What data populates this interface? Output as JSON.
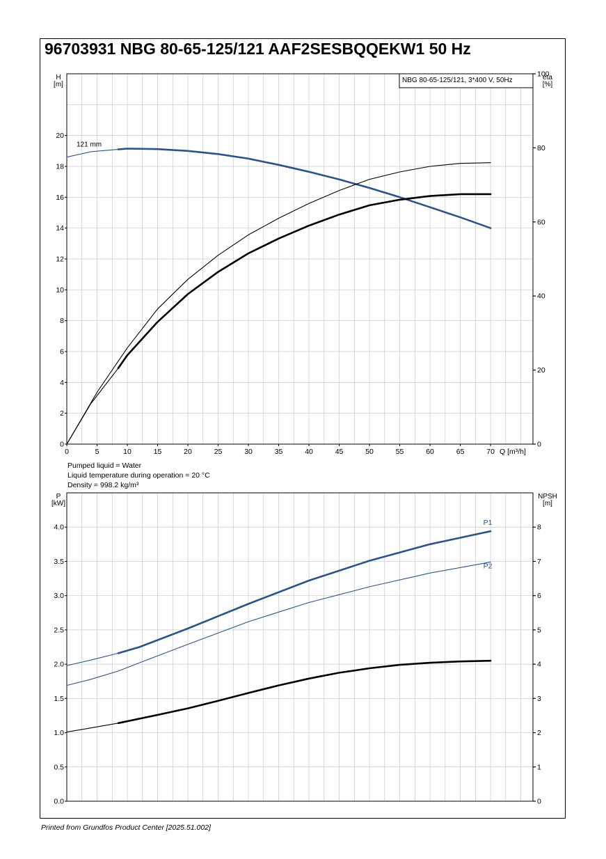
{
  "title": "96703931 NBG 80-65-125/121 AAF2SESBQQEKW1 50 Hz",
  "footer": "Printed from Grundfos Product Center [2025.51.002]",
  "notes": [
    "Pumped liquid = Water",
    "Liquid temperature during operation = 20 °C",
    "Density = 998.2 kg/m³"
  ],
  "colors": {
    "blue": "#2c5287",
    "black": "#000000",
    "grid": "#c8c8c8"
  },
  "chart_data": [
    {
      "type": "line",
      "legend_box": "NBG 80-65-125/121, 3*400 V, 50Hz",
      "left_axis": {
        "label_top": "H",
        "label_unit": "[m]",
        "ticks": [
          0,
          2,
          4,
          6,
          8,
          10,
          12,
          14,
          16,
          18,
          20
        ],
        "range": [
          0,
          24
        ]
      },
      "right_axis": {
        "label_top": "eta",
        "label_unit": "[%]",
        "ticks": [
          0,
          20,
          40,
          60,
          80,
          100
        ],
        "range": [
          0,
          100
        ]
      },
      "x_axis": {
        "label": "Q [m³/h]",
        "ticks": [
          0,
          5,
          10,
          15,
          20,
          25,
          30,
          35,
          40,
          45,
          50,
          55,
          60,
          65,
          70
        ],
        "range": [
          0,
          77
        ]
      },
      "grid": true,
      "series": [
        {
          "name": "121 mm",
          "axis": "left",
          "color": "blue",
          "segments": [
            {
              "style": "thin",
              "x": [
                0,
                4,
                8.5
              ],
              "y": [
                18.6,
                18.95,
                19.1
              ]
            },
            {
              "style": "thick",
              "x": [
                8.5,
                10,
                15,
                20,
                25,
                30,
                35,
                40,
                45,
                50,
                55,
                60,
                65,
                70
              ],
              "y": [
                19.1,
                19.15,
                19.12,
                19.0,
                18.8,
                18.5,
                18.1,
                17.65,
                17.15,
                16.6,
                16.0,
                15.35,
                14.7,
                14.0
              ]
            }
          ]
        },
        {
          "name": "",
          "axis": "right",
          "color": "black",
          "segments": [
            {
              "style": "thin",
              "x": [
                0,
                5,
                10,
                15,
                20,
                25,
                30,
                35,
                40,
                45,
                50,
                55,
                60,
                65,
                70
              ],
              "y": [
                0,
                14,
                26,
                36.5,
                44.5,
                51,
                56.5,
                61,
                65,
                68.5,
                71.5,
                73.5,
                75,
                75.8,
                76
              ]
            }
          ]
        },
        {
          "name": "",
          "axis": "right",
          "color": "black",
          "segments": [
            {
              "style": "thin",
              "x": [
                0,
                4,
                8.5
              ],
              "y": [
                0,
                11,
                20.5
              ]
            },
            {
              "style": "thick",
              "x": [
                8.5,
                10,
                15,
                20,
                25,
                30,
                35,
                40,
                45,
                50,
                55,
                60,
                65,
                70
              ],
              "y": [
                20.5,
                24,
                33,
                40.5,
                46.5,
                51.5,
                55.5,
                59,
                62,
                64.5,
                66,
                67,
                67.5,
                67.5
              ]
            }
          ]
        }
      ]
    },
    {
      "type": "line",
      "left_axis": {
        "label_top": "P",
        "label_unit": "[kW]",
        "ticks": [
          "0.0",
          "0.5",
          "1.0",
          "1.5",
          "2.0",
          "2.5",
          "3.0",
          "3.5",
          "4.0"
        ],
        "range": [
          0,
          4.5
        ]
      },
      "right_axis": {
        "label_top": "NPSH",
        "label_unit": "[m]",
        "ticks": [
          0,
          1,
          2,
          3,
          4,
          5,
          6,
          7,
          8
        ],
        "range": [
          0,
          9
        ]
      },
      "x_axis": {
        "range": [
          0,
          77
        ]
      },
      "grid": true,
      "series": [
        {
          "name": "P1",
          "axis": "left",
          "color": "blue",
          "segments": [
            {
              "style": "thin",
              "x": [
                0,
                4,
                8.5
              ],
              "y": [
                1.98,
                2.06,
                2.16
              ]
            },
            {
              "style": "thick",
              "x": [
                8.5,
                12,
                20,
                30,
                40,
                50,
                60,
                70
              ],
              "y": [
                2.16,
                2.25,
                2.52,
                2.88,
                3.22,
                3.51,
                3.75,
                3.94
              ]
            }
          ]
        },
        {
          "name": "P2",
          "axis": "left",
          "color": "blue",
          "segments": [
            {
              "style": "thin",
              "x": [
                0,
                4,
                8.5,
                12,
                20,
                30,
                40,
                50,
                60,
                70
              ],
              "y": [
                1.69,
                1.78,
                1.9,
                2.02,
                2.29,
                2.62,
                2.9,
                3.13,
                3.33,
                3.49
              ]
            }
          ]
        },
        {
          "name": "",
          "axis": "right",
          "color": "black",
          "segments": [
            {
              "style": "thin",
              "x": [
                0,
                4,
                8.5
              ],
              "y": [
                2.02,
                2.14,
                2.28
              ]
            },
            {
              "style": "thick",
              "x": [
                8.5,
                15,
                20,
                25,
                30,
                35,
                40,
                45,
                50,
                55,
                60,
                65,
                70
              ],
              "y": [
                2.28,
                2.52,
                2.71,
                2.93,
                3.16,
                3.38,
                3.58,
                3.75,
                3.88,
                3.98,
                4.04,
                4.08,
                4.1
              ]
            }
          ]
        }
      ]
    }
  ]
}
